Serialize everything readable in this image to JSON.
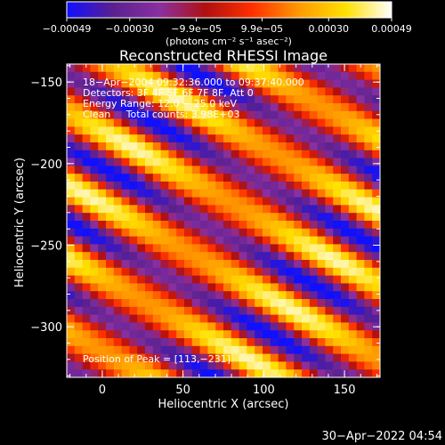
{
  "chart_data": {
    "type": "heatmap",
    "title": "Reconstructed RHESSI Image",
    "xlabel": "Heliocentric X (arcsec)",
    "ylabel": "Heliocentric Y (arcsec)",
    "xlim": [
      -22,
      172
    ],
    "ylim": [
      -331,
      -139
    ],
    "xticks": [
      0,
      50,
      100,
      150
    ],
    "yticks": [
      -150,
      -200,
      -250,
      -300
    ],
    "xtick_labels": [
      "0",
      "50",
      "100",
      "150"
    ],
    "ytick_labels": [
      "−150",
      "−200",
      "−250",
      "−300"
    ],
    "colorbar": {
      "range": [
        -0.00049,
        0.00049
      ],
      "tick_values": [
        -0.00049,
        -0.0003,
        -9.9e-05,
        9.9e-05,
        0.0003,
        0.00049
      ],
      "tick_labels": [
        "−0.00049",
        "−0.00030",
        "−9.9e−05",
        "9.9e−05",
        "0.00030",
        "0.00049"
      ],
      "unit_label": "(photons cm⁻² s⁻¹ asec⁻²)",
      "colors": [
        "#1010ff",
        "#5a2090",
        "#8a30a0",
        "#b01010",
        "#ff3000",
        "#ff9900",
        "#ffe000",
        "#ffffff"
      ]
    },
    "annotations": [
      "18−Apr−2004 09:32:36.000 to 09:37:40.000",
      "Detectors: 3F 4F 5F 6F 7F 8F, Att 0",
      "Energy Range: 12.0 − 25.0 keV",
      "Clean     Total counts: 3.98E+03"
    ],
    "peak_label": "Position of Peak = [113,−231]",
    "peak": [
      113,
      -231
    ],
    "grid": false,
    "pattern": {
      "description_values": "diagonal fringe pattern, intensity in data units",
      "bands": [
        {
          "offset": -2,
          "peak": 0.00049
        },
        {
          "offset": -1,
          "peak": 0.00045
        },
        {
          "offset": 0,
          "peak": 0.00049
        },
        {
          "offset": 1,
          "peak": 0.00042
        },
        {
          "offset": 2,
          "peak": 0.0004
        }
      ]
    }
  },
  "footer": {
    "timestamp": "30−Apr−2022 04:54"
  }
}
